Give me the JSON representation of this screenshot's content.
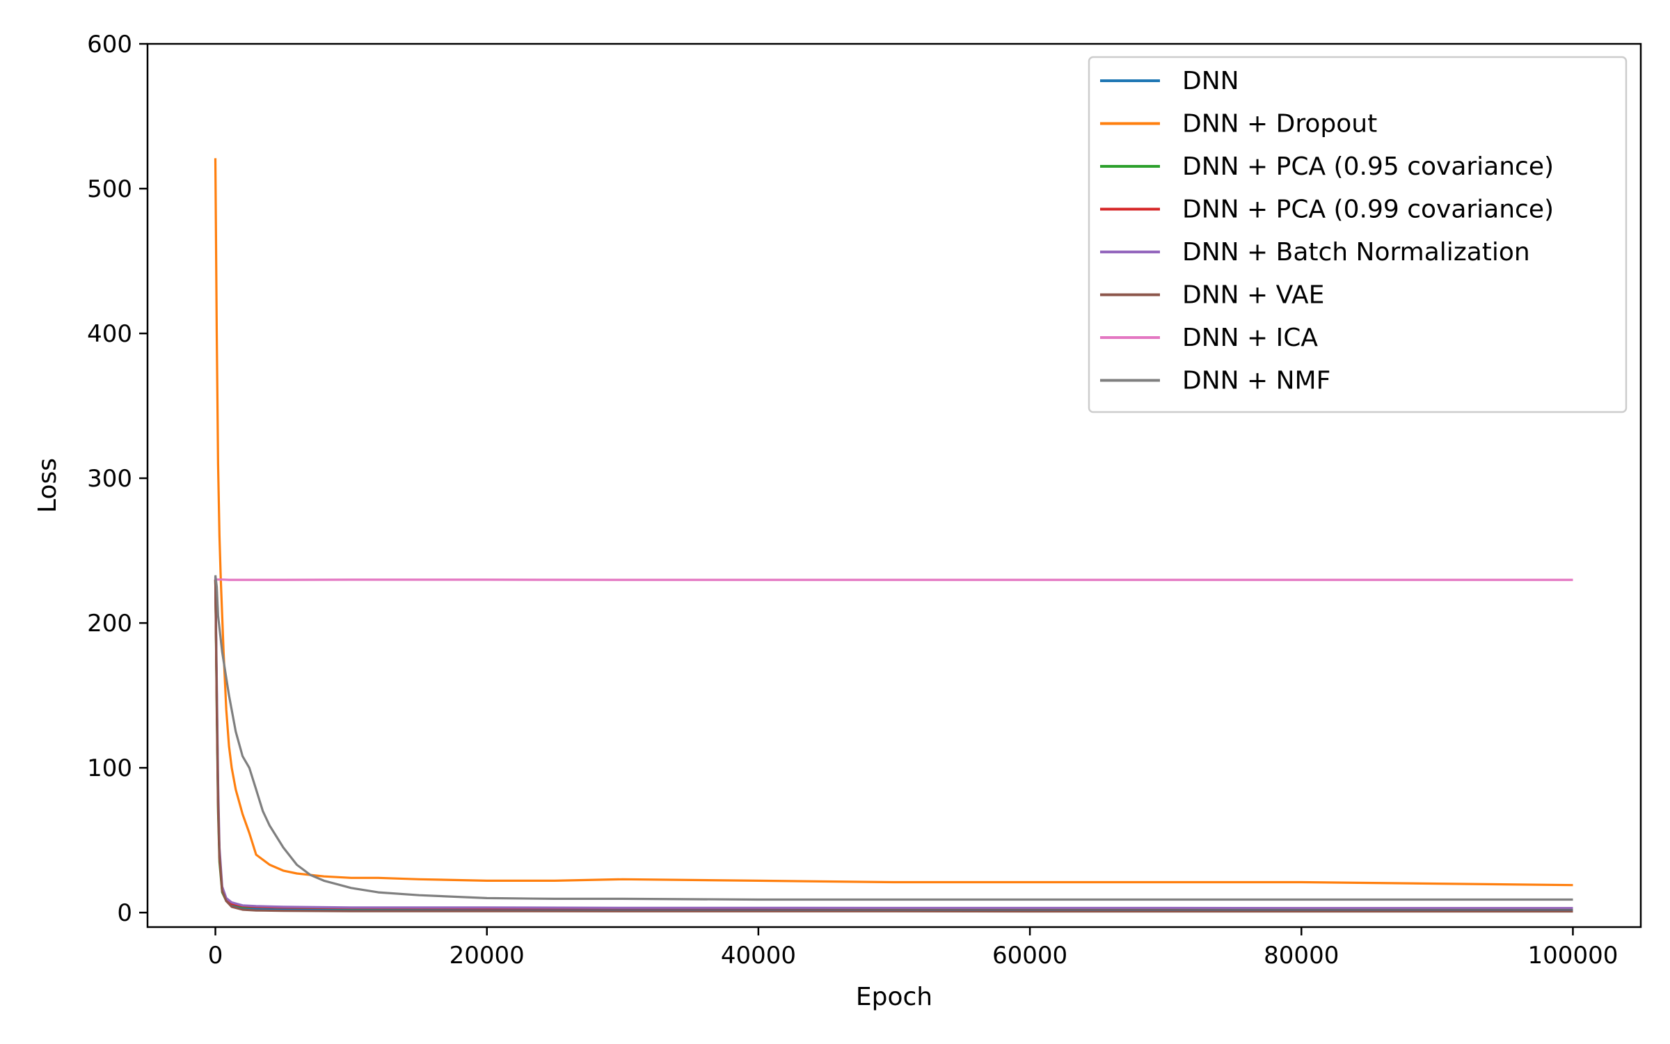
{
  "chart_data": {
    "type": "line",
    "title": "",
    "xlabel": "Epoch",
    "ylabel": "Loss",
    "xlim": [
      -5000,
      105000
    ],
    "ylim": [
      -10,
      600
    ],
    "xticks": [
      0,
      20000,
      40000,
      60000,
      80000,
      100000
    ],
    "xtick_labels": [
      "0",
      "20000",
      "40000",
      "60000",
      "80000",
      "100000"
    ],
    "yticks": [
      0,
      100,
      200,
      300,
      400,
      500,
      600
    ],
    "ytick_labels": [
      "0",
      "100",
      "200",
      "300",
      "400",
      "500",
      "600"
    ],
    "grid": false,
    "legend_position": "top-right",
    "series": [
      {
        "name": "DNN",
        "color": "#1f77b4",
        "x": [
          0,
          100,
          200,
          300,
          500,
          800,
          1200,
          2000,
          3000,
          5000,
          10000,
          20000,
          30000,
          40000,
          50000,
          60000,
          70000,
          80000,
          90000,
          100000
        ],
        "y": [
          230,
          150,
          80,
          40,
          15,
          8,
          5,
          3,
          2.5,
          2,
          2,
          1.8,
          1.8,
          1.7,
          1.7,
          1.6,
          1.6,
          1.6,
          1.5,
          1.5
        ]
      },
      {
        "name": "DNN + Dropout",
        "color": "#ff7f0e",
        "x": [
          0,
          100,
          200,
          300,
          400,
          600,
          800,
          1000,
          1200,
          1500,
          2000,
          2500,
          3000,
          4000,
          5000,
          6000,
          8000,
          10000,
          12000,
          15000,
          20000,
          25000,
          30000,
          40000,
          50000,
          60000,
          70000,
          80000,
          90000,
          100000
        ],
        "y": [
          521,
          400,
          310,
          260,
          230,
          180,
          140,
          115,
          100,
          85,
          68,
          55,
          40,
          33,
          29,
          27,
          25,
          24,
          24,
          23,
          22,
          22,
          23,
          22,
          21,
          21,
          21,
          21,
          20,
          19
        ]
      },
      {
        "name": "DNN + PCA (0.95 covariance)",
        "color": "#2ca02c",
        "x": [
          0,
          100,
          200,
          300,
          500,
          800,
          1200,
          2000,
          3000,
          5000,
          10000,
          20000,
          30000,
          40000,
          50000,
          60000,
          70000,
          80000,
          90000,
          100000
        ],
        "y": [
          230,
          140,
          70,
          35,
          14,
          8,
          6,
          4,
          4,
          3.5,
          3,
          3,
          3,
          3,
          2.8,
          2.8,
          2.8,
          2.8,
          2.8,
          2.8
        ]
      },
      {
        "name": "DNN + PCA (0.99 covariance)",
        "color": "#d62728",
        "x": [
          0,
          100,
          200,
          300,
          500,
          800,
          1200,
          2000,
          3000,
          5000,
          10000,
          20000,
          30000,
          40000,
          50000,
          60000,
          70000,
          80000,
          90000,
          100000
        ],
        "y": [
          230,
          145,
          75,
          38,
          15,
          8,
          6,
          4.5,
          4,
          3.5,
          3.2,
          3,
          3,
          3,
          3,
          3,
          3,
          3,
          3,
          3
        ]
      },
      {
        "name": "DNN + Batch Normalization",
        "color": "#9467bd",
        "x": [
          0,
          100,
          200,
          300,
          500,
          800,
          1200,
          2000,
          3000,
          5000,
          10000,
          20000,
          30000,
          40000,
          50000,
          60000,
          70000,
          80000,
          90000,
          100000
        ],
        "y": [
          232,
          160,
          90,
          45,
          18,
          10,
          7,
          5,
          4.5,
          4,
          3.5,
          3.5,
          3.3,
          3.3,
          3.2,
          3.2,
          3.2,
          3.1,
          3.1,
          3.1
        ]
      },
      {
        "name": "DNN + VAE",
        "color": "#8c564b",
        "x": [
          0,
          100,
          200,
          300,
          500,
          800,
          1200,
          2000,
          3000,
          5000,
          10000,
          20000,
          30000,
          40000,
          50000,
          60000,
          70000,
          80000,
          90000,
          100000
        ],
        "y": [
          230,
          150,
          78,
          40,
          15,
          8,
          4,
          2,
          1.5,
          1.2,
          1,
          1,
          0.9,
          0.9,
          0.9,
          0.8,
          0.8,
          0.8,
          0.8,
          0.8
        ]
      },
      {
        "name": "DNN + ICA",
        "color": "#e377c2",
        "x": [
          0,
          200,
          500,
          1000,
          5000,
          10000,
          20000,
          30000,
          40000,
          50000,
          60000,
          70000,
          80000,
          90000,
          100000
        ],
        "y": [
          230,
          230,
          230,
          229.8,
          229.8,
          229.9,
          229.9,
          229.8,
          229.8,
          229.8,
          229.8,
          229.8,
          229.8,
          229.8,
          229.8
        ]
      },
      {
        "name": "DNN + NMF",
        "color": "#7f7f7f",
        "x": [
          0,
          100,
          200,
          500,
          1000,
          1500,
          2000,
          2500,
          3000,
          3500,
          4000,
          5000,
          6000,
          7000,
          8000,
          10000,
          12000,
          15000,
          20000,
          25000,
          30000,
          40000,
          50000,
          60000,
          70000,
          80000,
          90000,
          100000
        ],
        "y": [
          233,
          225,
          205,
          180,
          150,
          125,
          108,
          100,
          85,
          70,
          60,
          45,
          33,
          26,
          22,
          17,
          14,
          12,
          10,
          9.5,
          9.5,
          9,
          9,
          9,
          9,
          9,
          9,
          9
        ]
      }
    ]
  }
}
